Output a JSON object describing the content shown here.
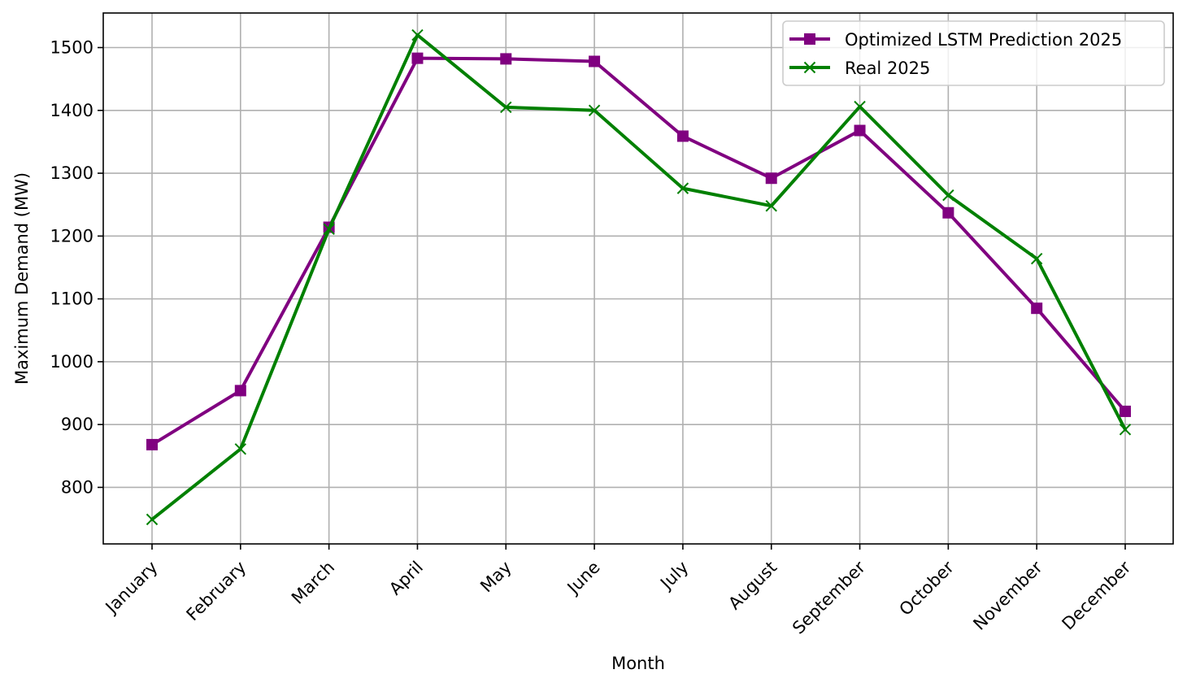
{
  "chart_data": {
    "type": "line",
    "title": "",
    "xlabel": "Month",
    "ylabel": "Maximum Demand (MW)",
    "categories": [
      "January",
      "February",
      "March",
      "April",
      "May",
      "June",
      "July",
      "August",
      "September",
      "October",
      "November",
      "December"
    ],
    "ylim": [
      710,
      1555
    ],
    "yticks": [
      800,
      900,
      1000,
      1100,
      1200,
      1300,
      1400,
      1500
    ],
    "grid": true,
    "legend_position": "top-right",
    "series": [
      {
        "name": "Optimized LSTM Prediction 2025",
        "color": "#800080",
        "marker": "square",
        "values": [
          868,
          954,
          1214,
          1483,
          1482,
          1478,
          1359,
          1292,
          1368,
          1237,
          1085,
          921
        ]
      },
      {
        "name": "Real 2025",
        "color": "#008000",
        "marker": "x",
        "values": [
          749,
          861,
          1211,
          1520,
          1405,
          1400,
          1276,
          1248,
          1406,
          1265,
          1164,
          892
        ]
      }
    ]
  }
}
